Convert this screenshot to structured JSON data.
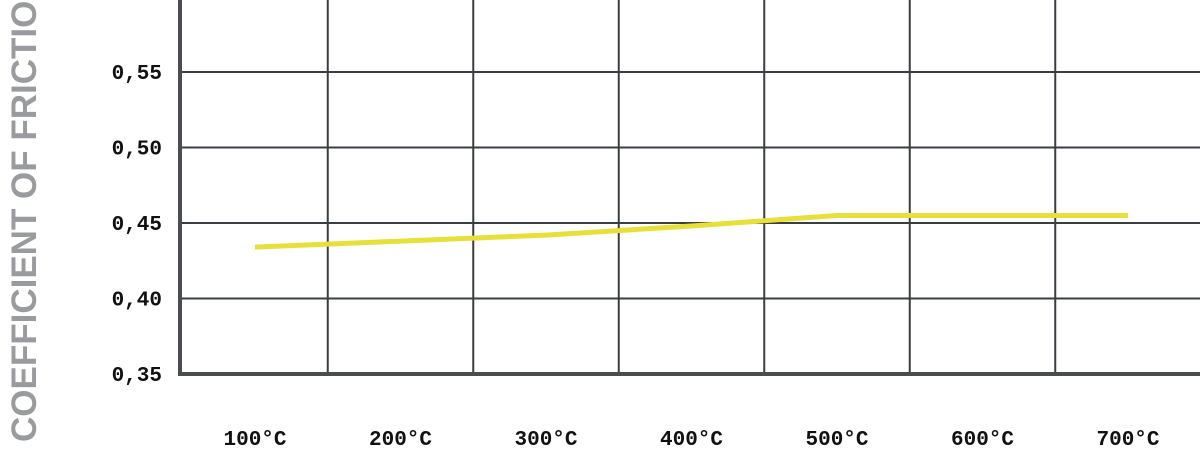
{
  "chart_data": {
    "type": "line",
    "title": "",
    "xlabel": "",
    "ylabel": "COEFFICIENT OF FRICTION",
    "categories": [
      "100°C",
      "200°C",
      "300°C",
      "400°C",
      "500°C",
      "600°C",
      "700°C"
    ],
    "y_tick_labels": [
      "0,35",
      "0,40",
      "0,45",
      "0,50",
      "0,55"
    ],
    "y_ticks": [
      0.35,
      0.4,
      0.45,
      0.5,
      0.55
    ],
    "ylim": [
      0.35,
      0.6
    ],
    "grid": true,
    "series": [
      {
        "values": [
          0.434,
          0.438,
          0.442,
          0.448,
          0.455,
          0.455,
          0.455
        ],
        "color": "#e8e03a"
      }
    ],
    "colors": {
      "grid": "#3a3d42",
      "axis": "#4a4c50",
      "ylabel": "#9a9b9e"
    }
  }
}
